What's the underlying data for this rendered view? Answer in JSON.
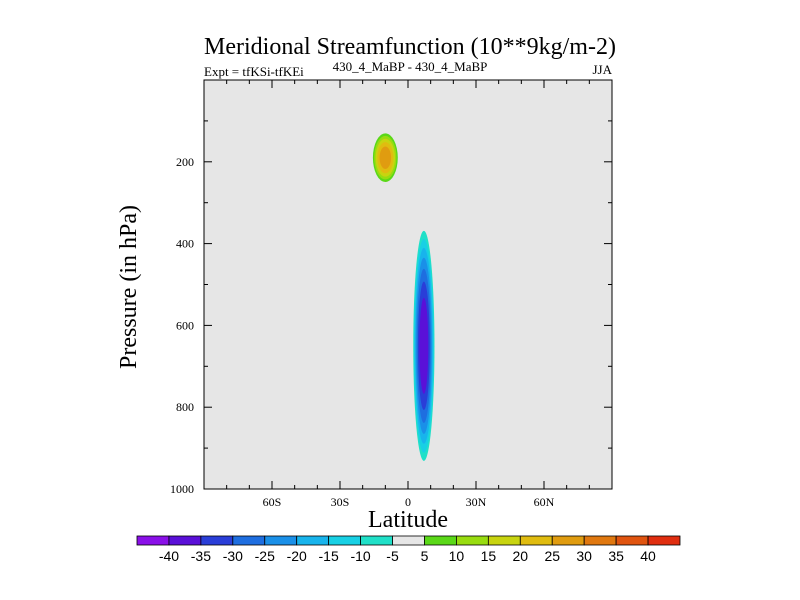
{
  "chart_data": {
    "type": "heatmap",
    "title": "Meridional Streamfunction (10**9kg/m-2)",
    "subtitle_left": "Expt = tfKSi-tfKEi",
    "subtitle_center": "430_4_MaBP - 430_4_MaBP",
    "subtitle_right": "JJA",
    "xlabel": "Latitude",
    "ylabel": "Pressure (in hPa)",
    "xlim": [
      -90,
      90
    ],
    "ylim": [
      1000,
      0
    ],
    "x_ticks": [
      {
        "value": -60,
        "label": "60S"
      },
      {
        "value": -30,
        "label": "30S"
      },
      {
        "value": 0,
        "label": "0"
      },
      {
        "value": 30,
        "label": "30N"
      },
      {
        "value": 60,
        "label": "60N"
      }
    ],
    "y_ticks": [
      {
        "value": 200,
        "label": "200"
      },
      {
        "value": 400,
        "label": "400"
      },
      {
        "value": 600,
        "label": "600"
      },
      {
        "value": 800,
        "label": "800"
      },
      {
        "value": 1000,
        "label": "1000"
      }
    ],
    "levels": [
      -45,
      -40,
      -35,
      -30,
      -25,
      -20,
      -15,
      -10,
      -5,
      5,
      10,
      15,
      20,
      25,
      30,
      35,
      40,
      45
    ],
    "colorbar_labels": [
      "-40",
      "-35",
      "-30",
      "-25",
      "-20",
      "-15",
      "-10",
      "-5",
      "5",
      "10",
      "15",
      "20",
      "25",
      "30",
      "35",
      "40"
    ],
    "colorbar_colors": [
      "#8a10e8",
      "#5a10d8",
      "#2a3ed8",
      "#1e6ee0",
      "#1a90e8",
      "#18b4ec",
      "#18d0e4",
      "#20e0c8",
      "#e6e6e6",
      "#5ad818",
      "#98dc10",
      "#c8d410",
      "#e0bc10",
      "#e09c10",
      "#e07810",
      "#e05410",
      "#e02e10"
    ],
    "background_color": "#e6e6e6",
    "features": [
      {
        "name": "negative cell",
        "lat": 7,
        "pressure": 650,
        "lat_half_width": 5,
        "pressure_half_height": 300,
        "peak": -38
      },
      {
        "name": "positive cell",
        "lat": -10,
        "pressure": 190,
        "lat_half_width": 6,
        "pressure_half_height": 65,
        "peak": 28
      }
    ]
  }
}
